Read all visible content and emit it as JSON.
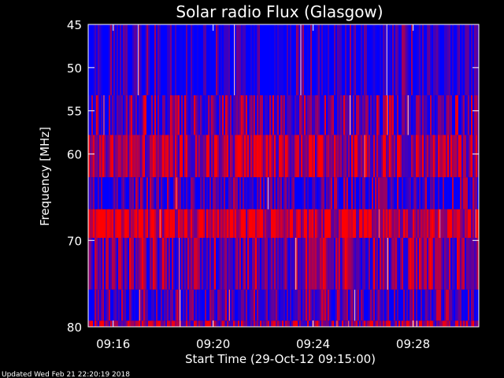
{
  "chart_data": {
    "type": "heatmap",
    "title": "Solar radio Flux (Glasgow)",
    "ylabel": "Frequency [MHz]",
    "xlabel": "Start Time (29-Oct-12 09:15:00)",
    "footer": "Updated Wed Feb 21 22:20:19 2018",
    "x_start": "09:15:00",
    "x_end": "09:30:38",
    "xlim_minutes": [
      0,
      15.63
    ],
    "x_ticks": [
      {
        "label": "09:16",
        "value": 1
      },
      {
        "label": "09:20",
        "value": 5
      },
      {
        "label": "09:24",
        "value": 9
      },
      {
        "label": "09:28",
        "value": 13
      }
    ],
    "ylim_mhz": [
      45,
      80
    ],
    "y_direction": "increasing-downward",
    "y_ticks": [
      {
        "label": "45",
        "value": 45
      },
      {
        "label": "50",
        "value": 50
      },
      {
        "label": "55",
        "value": 55
      },
      {
        "label": "60",
        "value": 60
      },
      {
        "label": "70",
        "value": 70
      },
      {
        "label": "80",
        "value": 80
      }
    ],
    "bands": [
      {
        "from": 45.0,
        "to": 53.2,
        "level": 0.04
      },
      {
        "from": 53.2,
        "to": 57.8,
        "level": 0.32
      },
      {
        "from": 57.8,
        "to": 62.7,
        "level": 0.62
      },
      {
        "from": 62.7,
        "to": 66.4,
        "level": 0.18
      },
      {
        "from": 66.4,
        "to": 69.7,
        "level": 0.78
      },
      {
        "from": 69.7,
        "to": 75.7,
        "level": 0.42
      },
      {
        "from": 75.7,
        "to": 79.3,
        "level": 0.22
      },
      {
        "from": 79.3,
        "to": 80.0,
        "level": 0.55
      }
    ],
    "colors": {
      "background": "#000000",
      "low": "#0000ff",
      "mid": "#7a0080",
      "high": "#ff0000",
      "frame": "#ffffff"
    }
  }
}
